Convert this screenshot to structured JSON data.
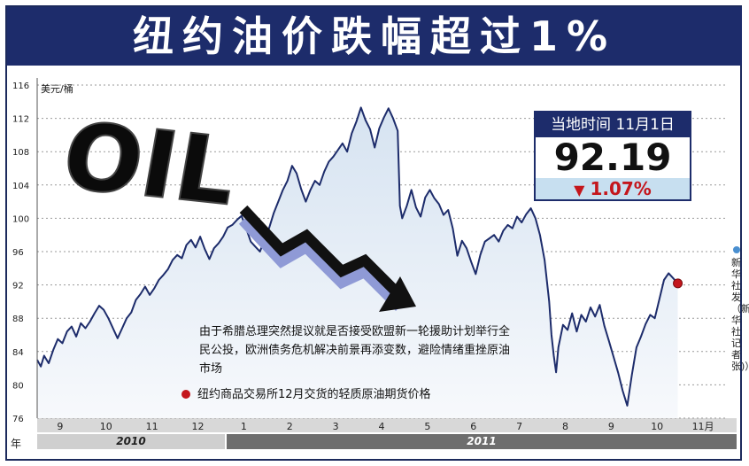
{
  "title": "纽约油价跌幅超过1%",
  "info_box": {
    "header": "当地时间 11月1日",
    "price": "92.19",
    "change_icon": "down-triangle-icon",
    "change": "1.07%"
  },
  "unit_label": "美元/桶",
  "annotation": "由于希腊总理突然提议就是否接受欧盟新一轮援助计划举行全民公投，欧洲债务危机解决前景再添变数，避险情绪重挫原油市场",
  "legend": "纽约商品交易所12月交货的轻质原油期货价格",
  "source": "新华社发（新华社记者 张)）",
  "year_prefix": "年",
  "colors": {
    "title_bg": "#1d2c6b",
    "line": "#1d2c6b",
    "area_fill": "#e4ecf5",
    "down": "#c4161c",
    "info_change_bg": "#c7dff0"
  },
  "chart_data": {
    "type": "area",
    "unit": "美元/桶",
    "y_ticks": [
      "76",
      "80",
      "84",
      "88",
      "92",
      "96",
      "100",
      "104",
      "108",
      "112",
      "116"
    ],
    "ylim": [
      76,
      116
    ],
    "x_categories": [
      "9",
      "10",
      "11",
      "12",
      "1",
      "2",
      "3",
      "4",
      "5",
      "6",
      "7",
      "8",
      "9",
      "10",
      "11月"
    ],
    "years": [
      {
        "label": "2010",
        "months": [
          "9",
          "10",
          "11",
          "12"
        ]
      },
      {
        "label": "2011",
        "months": [
          "1",
          "2",
          "3",
          "4",
          "5",
          "6",
          "7",
          "8",
          "9",
          "10",
          "11月"
        ]
      }
    ],
    "series": [
      {
        "values": [
          [
            0.0,
            83.0
          ],
          [
            0.08,
            82.2
          ],
          [
            0.15,
            83.5
          ],
          [
            0.25,
            82.6
          ],
          [
            0.35,
            84.2
          ],
          [
            0.45,
            85.5
          ],
          [
            0.55,
            85.0
          ],
          [
            0.65,
            86.4
          ],
          [
            0.75,
            87.0
          ],
          [
            0.85,
            85.8
          ],
          [
            0.95,
            87.4
          ],
          [
            1.05,
            86.8
          ],
          [
            1.15,
            87.6
          ],
          [
            1.25,
            88.6
          ],
          [
            1.35,
            89.5
          ],
          [
            1.45,
            89.0
          ],
          [
            1.55,
            88.0
          ],
          [
            1.65,
            86.8
          ],
          [
            1.75,
            85.6
          ],
          [
            1.85,
            86.8
          ],
          [
            1.95,
            88.0
          ],
          [
            2.05,
            88.7
          ],
          [
            2.15,
            90.2
          ],
          [
            2.25,
            90.9
          ],
          [
            2.35,
            91.8
          ],
          [
            2.45,
            90.8
          ],
          [
            2.55,
            91.6
          ],
          [
            2.65,
            92.6
          ],
          [
            2.75,
            93.2
          ],
          [
            2.85,
            93.9
          ],
          [
            2.95,
            95.0
          ],
          [
            3.05,
            95.6
          ],
          [
            3.15,
            95.2
          ],
          [
            3.25,
            96.8
          ],
          [
            3.35,
            97.4
          ],
          [
            3.45,
            96.5
          ],
          [
            3.55,
            97.8
          ],
          [
            3.65,
            96.3
          ],
          [
            3.75,
            95.1
          ],
          [
            3.85,
            96.4
          ],
          [
            3.95,
            97.0
          ],
          [
            4.05,
            97.8
          ],
          [
            4.15,
            98.9
          ],
          [
            4.25,
            99.2
          ],
          [
            4.35,
            99.8
          ],
          [
            4.45,
            100.3
          ],
          [
            4.55,
            98.8
          ],
          [
            4.65,
            97.2
          ],
          [
            4.75,
            96.6
          ],
          [
            4.85,
            96.0
          ],
          [
            4.95,
            97.4
          ],
          [
            5.05,
            98.8
          ],
          [
            5.15,
            100.6
          ],
          [
            5.25,
            102.0
          ],
          [
            5.35,
            103.4
          ],
          [
            5.45,
            104.5
          ],
          [
            5.55,
            106.3
          ],
          [
            5.65,
            105.4
          ],
          [
            5.75,
            103.5
          ],
          [
            5.85,
            102.0
          ],
          [
            5.95,
            103.4
          ],
          [
            6.05,
            104.5
          ],
          [
            6.15,
            104.0
          ],
          [
            6.25,
            105.6
          ],
          [
            6.35,
            106.8
          ],
          [
            6.45,
            107.4
          ],
          [
            6.55,
            108.2
          ],
          [
            6.65,
            109.0
          ],
          [
            6.75,
            108.0
          ],
          [
            6.85,
            110.2
          ],
          [
            6.95,
            111.6
          ],
          [
            7.05,
            113.3
          ],
          [
            7.15,
            111.8
          ],
          [
            7.25,
            110.7
          ],
          [
            7.35,
            108.5
          ],
          [
            7.45,
            110.8
          ],
          [
            7.55,
            112.1
          ],
          [
            7.65,
            113.2
          ],
          [
            7.75,
            112.0
          ],
          [
            7.85,
            110.5
          ],
          [
            7.9,
            101.5
          ],
          [
            7.95,
            100.0
          ],
          [
            8.05,
            101.5
          ],
          [
            8.15,
            103.4
          ],
          [
            8.25,
            101.3
          ],
          [
            8.35,
            100.2
          ],
          [
            8.45,
            102.5
          ],
          [
            8.55,
            103.4
          ],
          [
            8.65,
            102.4
          ],
          [
            8.75,
            101.7
          ],
          [
            8.85,
            100.4
          ],
          [
            8.95,
            101.0
          ],
          [
            9.05,
            98.8
          ],
          [
            9.15,
            95.5
          ],
          [
            9.25,
            97.3
          ],
          [
            9.35,
            96.4
          ],
          [
            9.45,
            94.8
          ],
          [
            9.55,
            93.3
          ],
          [
            9.65,
            95.6
          ],
          [
            9.75,
            97.2
          ],
          [
            9.85,
            97.6
          ],
          [
            9.95,
            98.0
          ],
          [
            10.05,
            97.2
          ],
          [
            10.15,
            98.5
          ],
          [
            10.25,
            99.2
          ],
          [
            10.35,
            98.8
          ],
          [
            10.45,
            100.2
          ],
          [
            10.55,
            99.5
          ],
          [
            10.65,
            100.5
          ],
          [
            10.75,
            101.2
          ],
          [
            10.85,
            100.0
          ],
          [
            10.95,
            98.0
          ],
          [
            11.05,
            95.0
          ],
          [
            11.15,
            90.0
          ],
          [
            11.2,
            86.0
          ],
          [
            11.25,
            83.5
          ],
          [
            11.3,
            81.5
          ],
          [
            11.35,
            84.5
          ],
          [
            11.45,
            87.2
          ],
          [
            11.55,
            86.6
          ],
          [
            11.65,
            88.6
          ],
          [
            11.75,
            86.4
          ],
          [
            11.85,
            88.4
          ],
          [
            11.95,
            87.6
          ],
          [
            12.05,
            89.3
          ],
          [
            12.15,
            88.2
          ],
          [
            12.25,
            89.6
          ],
          [
            12.35,
            87.1
          ],
          [
            12.45,
            85.3
          ],
          [
            12.55,
            83.4
          ],
          [
            12.65,
            81.5
          ],
          [
            12.75,
            79.3
          ],
          [
            12.85,
            77.5
          ],
          [
            12.95,
            81.2
          ],
          [
            13.05,
            84.5
          ],
          [
            13.15,
            85.8
          ],
          [
            13.25,
            87.3
          ],
          [
            13.35,
            88.4
          ],
          [
            13.45,
            88.0
          ],
          [
            13.55,
            90.3
          ],
          [
            13.65,
            92.6
          ],
          [
            13.75,
            93.4
          ],
          [
            13.85,
            92.8
          ],
          [
            13.95,
            92.19
          ]
        ]
      }
    ],
    "grid": "dotted-horizontal",
    "arrow": "down-trend-arrow",
    "oil_graphic": "OIL"
  }
}
